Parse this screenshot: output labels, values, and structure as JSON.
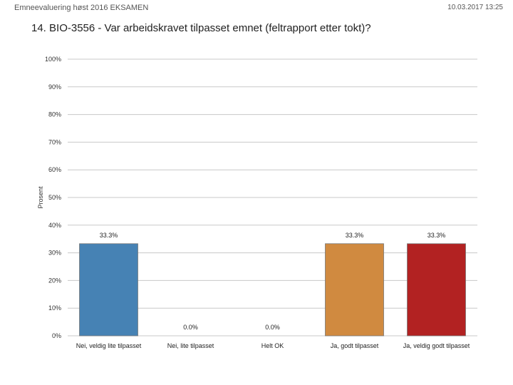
{
  "header": {
    "title": "Emneevaluering høst 2016 EKSAMEN",
    "timestamp": "10.03.2017 13:25"
  },
  "question": "14. BIO-3556 - Var arbeidskravet tilpasset emnet (feltrapport etter tokt)?",
  "chart_data": {
    "type": "bar",
    "title": "",
    "xlabel": "",
    "ylabel": "Prosent",
    "ylim": [
      0,
      100
    ],
    "yticks": [
      0,
      10,
      20,
      30,
      40,
      50,
      60,
      70,
      80,
      90,
      100
    ],
    "ytick_labels": [
      "0%",
      "10%",
      "20%",
      "30%",
      "40%",
      "50%",
      "60%",
      "70%",
      "80%",
      "90%",
      "100%"
    ],
    "grid": true,
    "categories": [
      "Nei, veldig lite tilpasset",
      "Nei, lite tilpasset",
      "Helt OK",
      "Ja, godt tilpasset",
      "Ja, veldig godt tilpasset"
    ],
    "values": [
      33.3,
      0.0,
      0.0,
      33.3,
      33.3
    ],
    "value_labels": [
      "33.3%",
      "0.0%",
      "0.0%",
      "33.3%",
      "33.3%"
    ],
    "colors": [
      "#4682b4",
      "#c0c0c0",
      "#c0c0c0",
      "#d08a40",
      "#b22222"
    ]
  }
}
